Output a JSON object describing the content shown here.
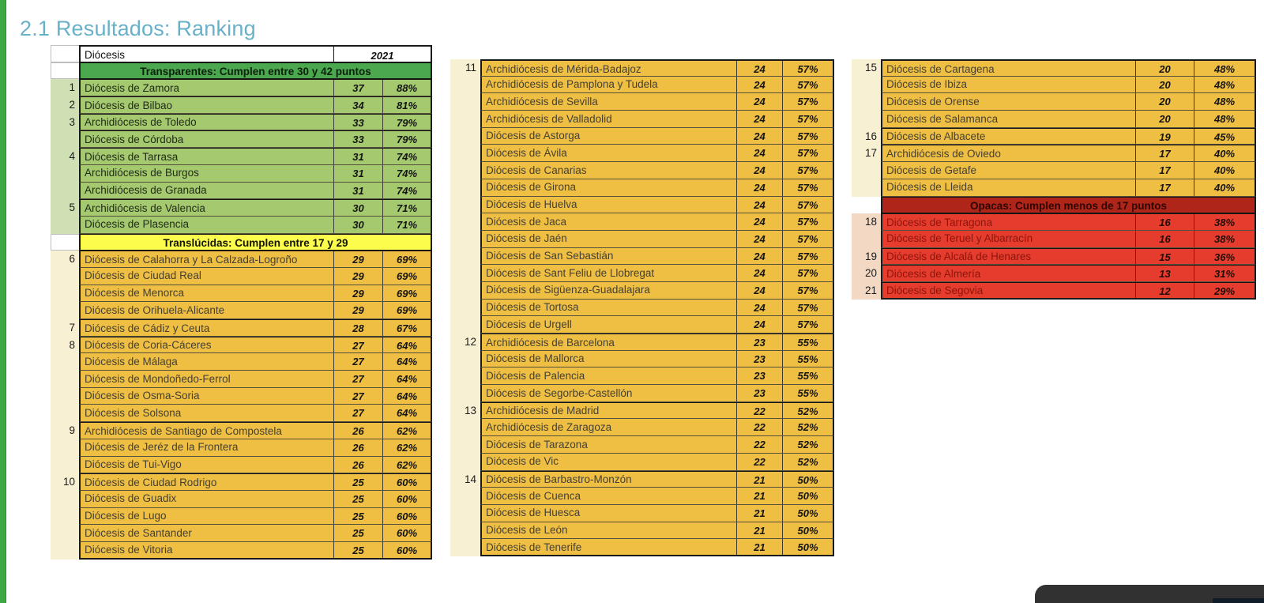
{
  "page": {
    "title": "2.1 Resultados: Ranking"
  },
  "colors": {
    "accent_title": "#69b1c8",
    "left_bar": "#3ea844",
    "transparent_banner": "#4ca84f",
    "transparent_row": "#a4c96f",
    "translucent_banner": "#fcfc4d",
    "translucent_row": "#efbf43",
    "opaque_banner": "#b0251a",
    "opaque_row": "#e63c2d"
  },
  "header": {
    "diocese_label": "Diócesis",
    "year_label": "2021"
  },
  "sections": {
    "transparent": "Transparentes: Cumplen entre 30 y 42 puntos",
    "translucent": "Translúcidas: Cumplen entre 17 y 29",
    "opaque": "Opacas: Cumplen menos de 17 puntos"
  },
  "tables": [
    {
      "rows": [
        {
          "header": true
        },
        {
          "banner": "green",
          "label": "Transparentes: Cumplen entre 30 y 42 puntos"
        },
        {
          "tier": "green",
          "rank": "1",
          "name": "Diócesis de Zamora",
          "pts": "37",
          "pct": "88%",
          "gs": true
        },
        {
          "tier": "green",
          "rank": "2",
          "name": "Diócesis de Bilbao",
          "pts": "34",
          "pct": "81%",
          "gs": true
        },
        {
          "tier": "green",
          "rank": "3",
          "name": "Archidiócesis de Toledo",
          "pts": "33",
          "pct": "79%",
          "gs": true
        },
        {
          "tier": "green",
          "rank": "",
          "name": "Diócesis de Córdoba",
          "pts": "33",
          "pct": "79%",
          "gs": true
        },
        {
          "tier": "green",
          "rank": "4",
          "name": "Diócesis de Tarrasa",
          "pts": "31",
          "pct": "74%",
          "gs": true
        },
        {
          "tier": "green",
          "rank": "",
          "name": "Archidiócesis de Burgos",
          "pts": "31",
          "pct": "74%"
        },
        {
          "tier": "green",
          "rank": "",
          "name": "Archidiócesis de Granada",
          "pts": "31",
          "pct": "74%"
        },
        {
          "tier": "green",
          "rank": "5",
          "name": "Archidiócesis de Valencia",
          "pts": "30",
          "pct": "71%",
          "gs": true
        },
        {
          "tier": "green",
          "rank": "",
          "name": "Diócesis de Plasencia",
          "pts": "30",
          "pct": "71%"
        },
        {
          "banner": "yellow",
          "label": "Translúcidas: Cumplen entre 17 y 29"
        },
        {
          "tier": "gold",
          "rank": "6",
          "name": "Diócesis de Calahorra y La Calzada-Logroño",
          "pts": "29",
          "pct": "69%",
          "gs": true
        },
        {
          "tier": "gold",
          "rank": "",
          "name": "Diócesis de Ciudad Real",
          "pts": "29",
          "pct": "69%"
        },
        {
          "tier": "gold",
          "rank": "",
          "name": "Diócesis de Menorca",
          "pts": "29",
          "pct": "69%"
        },
        {
          "tier": "gold",
          "rank": "",
          "name": "Diócesis de Orihuela-Alicante",
          "pts": "29",
          "pct": "69%"
        },
        {
          "tier": "gold",
          "rank": "7",
          "name": "Diócesis de Cádiz y Ceuta",
          "pts": "28",
          "pct": "67%",
          "gs": true
        },
        {
          "tier": "gold",
          "rank": "8",
          "name": "Diócesis de Coria-Cáceres",
          "pts": "27",
          "pct": "64%",
          "gs": true
        },
        {
          "tier": "gold",
          "rank": "",
          "name": "Diócesis de Málaga",
          "pts": "27",
          "pct": "64%"
        },
        {
          "tier": "gold",
          "rank": "",
          "name": "Diócesis de Mondoñedo-Ferrol",
          "pts": "27",
          "pct": "64%"
        },
        {
          "tier": "gold",
          "rank": "",
          "name": "Diócesis de Osma-Soria",
          "pts": "27",
          "pct": "64%"
        },
        {
          "tier": "gold",
          "rank": "",
          "name": "Diócesis de Solsona",
          "pts": "27",
          "pct": "64%"
        },
        {
          "tier": "gold",
          "rank": "9",
          "name": "Archidiócesis de Santiago de Compostela",
          "pts": "26",
          "pct": "62%",
          "gs": true
        },
        {
          "tier": "gold",
          "rank": "",
          "name": "Diócesis de Jeréz de la Frontera",
          "pts": "26",
          "pct": "62%"
        },
        {
          "tier": "gold",
          "rank": "",
          "name": "Diócesis de Tui-Vigo",
          "pts": "26",
          "pct": "62%"
        },
        {
          "tier": "gold",
          "rank": "10",
          "name": "Diócesis de Ciudad Rodrigo",
          "pts": "25",
          "pct": "60%",
          "gs": true
        },
        {
          "tier": "gold",
          "rank": "",
          "name": "Diócesis de Guadix",
          "pts": "25",
          "pct": "60%"
        },
        {
          "tier": "gold",
          "rank": "",
          "name": "Diócesis de Lugo",
          "pts": "25",
          "pct": "60%"
        },
        {
          "tier": "gold",
          "rank": "",
          "name": "Diócesis de Santander",
          "pts": "25",
          "pct": "60%"
        },
        {
          "tier": "gold",
          "rank": "",
          "name": "Diócesis de Vitoria",
          "pts": "25",
          "pct": "60%"
        }
      ]
    },
    {
      "rows": [
        {
          "tier": "gold",
          "rank": "11",
          "name": "Archidiócesis de Mérida-Badajoz",
          "pts": "24",
          "pct": "57%"
        },
        {
          "tier": "gold",
          "rank": "",
          "name": "Archidiócesis de Pamplona y Tudela",
          "pts": "24",
          "pct": "57%"
        },
        {
          "tier": "gold",
          "rank": "",
          "name": "Archidiócesis de Sevilla",
          "pts": "24",
          "pct": "57%"
        },
        {
          "tier": "gold",
          "rank": "",
          "name": "Archidiócesis de Valladolid",
          "pts": "24",
          "pct": "57%"
        },
        {
          "tier": "gold",
          "rank": "",
          "name": "Diócesis de Astorga",
          "pts": "24",
          "pct": "57%"
        },
        {
          "tier": "gold",
          "rank": "",
          "name": "Diócesis de Ávila",
          "pts": "24",
          "pct": "57%"
        },
        {
          "tier": "gold",
          "rank": "",
          "name": "Diócesis de Canarias",
          "pts": "24",
          "pct": "57%"
        },
        {
          "tier": "gold",
          "rank": "",
          "name": "Diócesis de Girona",
          "pts": "24",
          "pct": "57%"
        },
        {
          "tier": "gold",
          "rank": "",
          "name": "Diócesis de Huelva",
          "pts": "24",
          "pct": "57%"
        },
        {
          "tier": "gold",
          "rank": "",
          "name": "Diócesis de Jaca",
          "pts": "24",
          "pct": "57%"
        },
        {
          "tier": "gold",
          "rank": "",
          "name": "Diócesis de Jaén",
          "pts": "24",
          "pct": "57%"
        },
        {
          "tier": "gold",
          "rank": "",
          "name": "Diócesis de San Sebastián",
          "pts": "24",
          "pct": "57%"
        },
        {
          "tier": "gold",
          "rank": "",
          "name": "Diócesis de Sant Feliu de Llobregat",
          "pts": "24",
          "pct": "57%"
        },
        {
          "tier": "gold",
          "rank": "",
          "name": "Diócesis de Sigüenza-Guadalajara",
          "pts": "24",
          "pct": "57%"
        },
        {
          "tier": "gold",
          "rank": "",
          "name": "Diócesis de Tortosa",
          "pts": "24",
          "pct": "57%"
        },
        {
          "tier": "gold",
          "rank": "",
          "name": "Diócesis de Urgell",
          "pts": "24",
          "pct": "57%"
        },
        {
          "tier": "gold",
          "rank": "12",
          "name": "Archidiócesis de Barcelona",
          "pts": "23",
          "pct": "55%",
          "gs": true
        },
        {
          "tier": "gold",
          "rank": "",
          "name": "Diócesis de Mallorca",
          "pts": "23",
          "pct": "55%"
        },
        {
          "tier": "gold",
          "rank": "",
          "name": "Diócesis de Palencia",
          "pts": "23",
          "pct": "55%"
        },
        {
          "tier": "gold",
          "rank": "",
          "name": "Diócesis de Segorbe-Castellón",
          "pts": "23",
          "pct": "55%"
        },
        {
          "tier": "gold",
          "rank": "13",
          "name": "Archidiócesis de Madrid",
          "pts": "22",
          "pct": "52%",
          "gs": true
        },
        {
          "tier": "gold",
          "rank": "",
          "name": "Archidiócesis de Zaragoza",
          "pts": "22",
          "pct": "52%"
        },
        {
          "tier": "gold",
          "rank": "",
          "name": "Diócesis de Tarazona",
          "pts": "22",
          "pct": "52%"
        },
        {
          "tier": "gold",
          "rank": "",
          "name": "Diócesis de Vic",
          "pts": "22",
          "pct": "52%"
        },
        {
          "tier": "gold",
          "rank": "14",
          "name": "Diócesis de Barbastro-Monzón",
          "pts": "21",
          "pct": "50%",
          "gs": true
        },
        {
          "tier": "gold",
          "rank": "",
          "name": "Diócesis de Cuenca",
          "pts": "21",
          "pct": "50%"
        },
        {
          "tier": "gold",
          "rank": "",
          "name": "Diócesis de Huesca",
          "pts": "21",
          "pct": "50%"
        },
        {
          "tier": "gold",
          "rank": "",
          "name": "Diócesis de León",
          "pts": "21",
          "pct": "50%"
        },
        {
          "tier": "gold",
          "rank": "",
          "name": "Diócesis de Tenerife",
          "pts": "21",
          "pct": "50%"
        }
      ]
    },
    {
      "rows": [
        {
          "tier": "gold",
          "rank": "15",
          "name": "Diócesis de Cartagena",
          "pts": "20",
          "pct": "48%"
        },
        {
          "tier": "gold",
          "rank": "",
          "name": "Diócesis de Ibiza",
          "pts": "20",
          "pct": "48%"
        },
        {
          "tier": "gold",
          "rank": "",
          "name": "Diócesis de Orense",
          "pts": "20",
          "pct": "48%"
        },
        {
          "tier": "gold",
          "rank": "",
          "name": "Diócesis de Salamanca",
          "pts": "20",
          "pct": "48%"
        },
        {
          "tier": "gold",
          "rank": "16",
          "name": "Diócesis de Albacete",
          "pts": "19",
          "pct": "45%",
          "gs": true
        },
        {
          "tier": "gold",
          "rank": "17",
          "name": "Archidiócesis de Oviedo",
          "pts": "17",
          "pct": "40%",
          "gs": true
        },
        {
          "tier": "gold",
          "rank": "",
          "name": "Diócesis de Getafe",
          "pts": "17",
          "pct": "40%"
        },
        {
          "tier": "gold",
          "rank": "",
          "name": "Diócesis de Lleida",
          "pts": "17",
          "pct": "40%"
        },
        {
          "banner": "red",
          "label": "Opacas: Cumplen menos de 17 puntos"
        },
        {
          "tier": "red",
          "rank": "18",
          "name": "Diócesis de Tarragona",
          "pts": "16",
          "pct": "38%",
          "gs": true
        },
        {
          "tier": "red",
          "rank": "",
          "name": "Diócesis de Teruel y Albarracín",
          "pts": "16",
          "pct": "38%"
        },
        {
          "tier": "red",
          "rank": "19",
          "name": "Diócesis de Alcalá de Henares",
          "pts": "15",
          "pct": "36%",
          "gs": true
        },
        {
          "tier": "red",
          "rank": "20",
          "name": "Diócesis de Almería",
          "pts": "13",
          "pct": "31%",
          "gs": true
        },
        {
          "tier": "red",
          "rank": "21",
          "name": "Diócesis de Segovia",
          "pts": "12",
          "pct": "29%",
          "gs": true
        }
      ]
    }
  ]
}
